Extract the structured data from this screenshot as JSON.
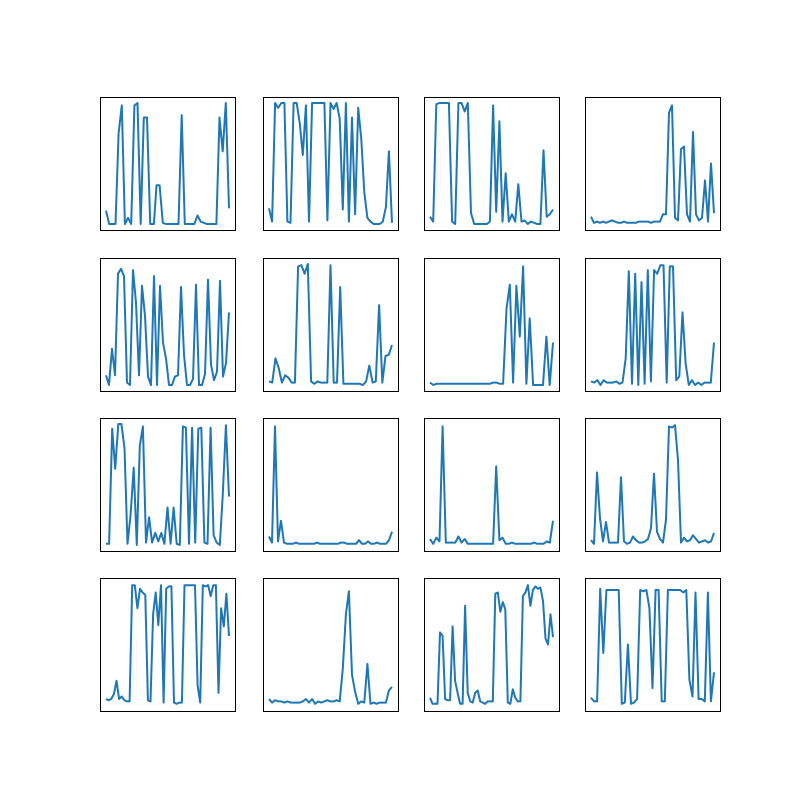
{
  "figure": {
    "background": "#ffffff",
    "line_color": "#1f77b4",
    "frame_color": "#000000"
  },
  "chart_data": [
    {
      "type": "line",
      "title": "",
      "xlabel": "",
      "ylabel": "",
      "axis_ticks": false,
      "grid": false,
      "xlim": [
        0,
        39
      ],
      "ylim": [
        0,
        1
      ],
      "x": [
        0,
        1,
        2,
        3,
        4,
        5,
        6,
        7,
        8,
        9,
        10,
        11,
        12,
        13,
        14,
        15,
        15.2,
        16,
        17,
        18,
        19,
        20,
        21,
        22,
        23,
        24,
        25,
        26,
        27,
        28,
        29,
        30,
        31,
        32,
        33,
        34,
        35,
        36,
        37,
        38,
        39
      ],
      "y": [
        0.11,
        0,
        0,
        0,
        0.75,
        0.98,
        0,
        0.05,
        0,
        0.98,
        1,
        0,
        0.88,
        0.88,
        0,
        0,
        0,
        0.32,
        0.32,
        0.01,
        0,
        0,
        0,
        0,
        0,
        0.9,
        0,
        0,
        0,
        0,
        0.07,
        0.02,
        0.01,
        0,
        0,
        0,
        0,
        0.88,
        0.6,
        1,
        0.13
      ]
    },
    {
      "type": "line",
      "title": "",
      "xlabel": "",
      "ylabel": "",
      "axis_ticks": false,
      "grid": false,
      "xlim": [
        0,
        39
      ],
      "ylim": [
        0,
        1
      ],
      "y": [
        0.13,
        0.02,
        1,
        0.96,
        1,
        1,
        0.02,
        0.01,
        1,
        1,
        0.83,
        0.57,
        0.98,
        0.02,
        1,
        1,
        1,
        1,
        1,
        0.03,
        1,
        0.95,
        1,
        0.87,
        0.12,
        1,
        0.02,
        0.88,
        0.08,
        0.96,
        0.7,
        0.26,
        0.05,
        0.02,
        0,
        0,
        0,
        0.02,
        0.14,
        0.6,
        0.01
      ]
    },
    {
      "type": "line",
      "title": "",
      "xlabel": "",
      "ylabel": "",
      "axis_ticks": false,
      "grid": false,
      "xlim": [
        0,
        39
      ],
      "ylim": [
        0,
        1
      ],
      "y": [
        0.06,
        0.02,
        0.99,
        1,
        1,
        1,
        1,
        0.02,
        0,
        1,
        1,
        0.93,
        1,
        0.09,
        0,
        0,
        0,
        0,
        0,
        0.02,
        0.98,
        0.1,
        0.85,
        0.02,
        0.42,
        0.02,
        0.08,
        0.02,
        0.33,
        0.02,
        0.03,
        0,
        0.02,
        0.01,
        0,
        0,
        0.61,
        0.06,
        0.08,
        0.12
      ]
    },
    {
      "type": "line",
      "title": "",
      "xlabel": "",
      "ylabel": "",
      "axis_ticks": false,
      "grid": false,
      "xlim": [
        0,
        39
      ],
      "ylim": [
        0,
        1
      ],
      "y": [
        0.06,
        0.01,
        0.02,
        0.01,
        0.02,
        0.01,
        0.02,
        0.03,
        0.02,
        0.01,
        0.01,
        0.02,
        0.01,
        0.01,
        0.01,
        0.01,
        0.02,
        0.02,
        0.02,
        0.02,
        0.01,
        0.02,
        0.02,
        0.02,
        0.08,
        0.08,
        0.92,
        0.98,
        0.05,
        0.03,
        0.62,
        0.64,
        0.08,
        0.02,
        0.76,
        0.08,
        0.03,
        0.05,
        0.36,
        0.02,
        0.5,
        0.09
      ]
    },
    {
      "type": "line",
      "title": "",
      "xlabel": "",
      "ylabel": "",
      "axis_ticks": false,
      "grid": false,
      "xlim": [
        0,
        39
      ],
      "ylim": [
        0,
        1
      ],
      "y": [
        0.08,
        0,
        0.3,
        0.08,
        0.92,
        0.96,
        0.9,
        0.02,
        0,
        0.95,
        0.68,
        0.08,
        0.82,
        0.57,
        0.07,
        0,
        0.9,
        0,
        0.82,
        0.35,
        0.22,
        0,
        0,
        0.07,
        0.08,
        0.81,
        0.25,
        0,
        0,
        0.05,
        0.83,
        0,
        0,
        0.09,
        0.87,
        0.17,
        0.04,
        0.11,
        0.86,
        0.07,
        0.18,
        0.6
      ]
    },
    {
      "type": "line",
      "title": "",
      "xlabel": "",
      "ylabel": "",
      "axis_ticks": false,
      "grid": false,
      "xlim": [
        0,
        39
      ],
      "ylim": [
        0,
        1
      ],
      "y": [
        0.03,
        0.02,
        0.22,
        0.14,
        0.02,
        0.08,
        0.06,
        0.02,
        0.02,
        0.98,
        0.99,
        0.92,
        1,
        0.03,
        0.01,
        0.03,
        0.02,
        0.02,
        0.02,
        0.99,
        0.02,
        0.02,
        0.81,
        0.01,
        0.01,
        0.01,
        0.01,
        0.01,
        0.01,
        0,
        0.03,
        0.16,
        0.02,
        0.03,
        0.66,
        0.02,
        0.24,
        0.25,
        0.33
      ]
    },
    {
      "type": "line",
      "title": "",
      "xlabel": "",
      "ylabel": "",
      "axis_ticks": false,
      "grid": false,
      "xlim": [
        0,
        39
      ],
      "ylim": [
        0,
        1
      ],
      "y": [
        0.02,
        0,
        0.01,
        0.01,
        0.01,
        0.01,
        0.01,
        0.01,
        0.01,
        0.01,
        0.01,
        0.01,
        0.01,
        0.01,
        0.01,
        0.01,
        0.01,
        0.01,
        0.01,
        0.02,
        0.02,
        0.01,
        0.01,
        0.63,
        0.83,
        0.02,
        0.82,
        0.4,
        0.98,
        0.01,
        0.55,
        0,
        0,
        0,
        0,
        0.4,
        0,
        0.35
      ]
    },
    {
      "type": "line",
      "title": "",
      "xlabel": "",
      "ylabel": "",
      "axis_ticks": false,
      "grid": false,
      "xlim": [
        0,
        39
      ],
      "ylim": [
        0,
        1
      ],
      "y": [
        0.03,
        0.02,
        0.04,
        0,
        0.04,
        0.02,
        0.02,
        0.02,
        0.03,
        0.01,
        0.02,
        0.22,
        0.94,
        0.01,
        0.92,
        0,
        0.85,
        0.01,
        0.95,
        0.03,
        0.95,
        0.92,
        0.99,
        0.99,
        0.02,
        0.98,
        0.98,
        0.04,
        0.07,
        0.6,
        0.18,
        0,
        0.04,
        0,
        0.02,
        0,
        0.02,
        0.02,
        0.02,
        0.35
      ]
    },
    {
      "type": "line",
      "title": "",
      "xlabel": "",
      "ylabel": "",
      "axis_ticks": false,
      "grid": false,
      "xlim": [
        0,
        39
      ],
      "ylim": [
        0,
        1
      ],
      "y": [
        0.01,
        0.01,
        0.96,
        0.63,
        1,
        1,
        0.8,
        0.01,
        0.25,
        0.64,
        0,
        0.82,
        0.98,
        0.02,
        0.23,
        0.02,
        0.1,
        0.03,
        0.1,
        0.01,
        0.31,
        0.01,
        0.31,
        0.01,
        0,
        0.98,
        0.97,
        0.01,
        0.97,
        0.02,
        0.96,
        0.97,
        0.02,
        0.01,
        0.97,
        0.08,
        0.02,
        0,
        0.42,
        0.99,
        0.4
      ]
    },
    {
      "type": "line",
      "title": "",
      "xlabel": "",
      "ylabel": "",
      "axis_ticks": false,
      "grid": false,
      "xlim": [
        0,
        39
      ],
      "ylim": [
        0,
        1
      ],
      "y": [
        0.07,
        0.02,
        0.98,
        0.03,
        0.2,
        0.02,
        0.01,
        0.01,
        0.01,
        0.02,
        0.01,
        0.01,
        0.01,
        0.01,
        0.01,
        0.01,
        0.02,
        0.01,
        0.01,
        0.01,
        0.01,
        0.01,
        0.01,
        0.01,
        0.02,
        0.02,
        0.01,
        0.01,
        0.01,
        0.01,
        0.04,
        0.01,
        0.01,
        0.03,
        0.01,
        0.01,
        0.02,
        0.01,
        0.01,
        0.01,
        0.04,
        0.11
      ]
    },
    {
      "type": "line",
      "title": "",
      "xlabel": "",
      "ylabel": "",
      "axis_ticks": false,
      "grid": false,
      "xlim": [
        0,
        39
      ],
      "ylim": [
        0,
        1
      ],
      "y": [
        0.05,
        0.01,
        0.06,
        0.03,
        0.98,
        0.02,
        0.02,
        0.02,
        0.02,
        0.07,
        0.02,
        0.05,
        0.01,
        0.01,
        0.01,
        0.01,
        0.01,
        0.01,
        0.01,
        0.01,
        0.01,
        0.65,
        0.04,
        0.06,
        0.01,
        0.01,
        0.02,
        0.01,
        0.01,
        0.01,
        0.01,
        0.01,
        0.01,
        0.02,
        0.01,
        0.01,
        0.01,
        0.03,
        0.02,
        0.2
      ]
    },
    {
      "type": "line",
      "title": "",
      "xlabel": "",
      "ylabel": "",
      "axis_ticks": false,
      "grid": false,
      "xlim": [
        0,
        39
      ],
      "ylim": [
        0,
        1
      ],
      "y": [
        0.04,
        0.01,
        0.6,
        0.22,
        0.03,
        0.19,
        0.02,
        0.02,
        0.02,
        0.02,
        0.56,
        0.03,
        0.01,
        0.02,
        0.07,
        0.04,
        0.02,
        0.02,
        0.03,
        0.05,
        0.14,
        0.59,
        0.11,
        0.05,
        0.02,
        0.21,
        0.98,
        0.97,
        0.99,
        0.7,
        0.02,
        0.06,
        0.03,
        0.04,
        0.08,
        0.05,
        0.02,
        0.03,
        0.04,
        0.02,
        0.03,
        0.1
      ]
    },
    {
      "type": "line",
      "title": "",
      "xlabel": "",
      "ylabel": "",
      "axis_ticks": false,
      "grid": false,
      "xlim": [
        0,
        39
      ],
      "ylim": [
        0,
        1
      ],
      "y": [
        0.05,
        0.04,
        0.05,
        0.09,
        0.2,
        0.05,
        0.07,
        0.04,
        0.03,
        0.03,
        0.99,
        0.99,
        0.8,
        0.96,
        0.93,
        0.91,
        0.04,
        0.03,
        0.75,
        0.93,
        0.66,
        0.99,
        0.02,
        0.96,
        0.98,
        0.98,
        0.02,
        0.01,
        0.02,
        0.02,
        0.99,
        0.99,
        0.99,
        0.99,
        0.99,
        0.16,
        0.02,
        0.99,
        0.98,
        0.99,
        0.9,
        0.99,
        0.99,
        0.1,
        0.8,
        0.65,
        0.92,
        0.57
      ]
    },
    {
      "type": "line",
      "title": "",
      "xlabel": "",
      "ylabel": "",
      "axis_ticks": false,
      "grid": false,
      "xlim": [
        0,
        39
      ],
      "ylim": [
        0,
        1
      ],
      "y": [
        0.05,
        0.02,
        0.04,
        0.03,
        0.03,
        0.02,
        0.03,
        0.02,
        0.02,
        0.02,
        0.02,
        0.03,
        0.05,
        0.02,
        0.05,
        0.01,
        0.03,
        0.02,
        0.03,
        0.04,
        0.03,
        0.03,
        0.04,
        0.03,
        0.3,
        0.75,
        0.94,
        0.25,
        0.11,
        0.01,
        0.03,
        0.02,
        0.34,
        0.01,
        0.02,
        0.01,
        0.02,
        0.02,
        0.02,
        0.12,
        0.15
      ]
    },
    {
      "type": "line",
      "title": "",
      "xlabel": "",
      "ylabel": "",
      "axis_ticks": false,
      "grid": false,
      "xlim": [
        0,
        39
      ],
      "ylim": [
        0,
        1
      ],
      "y": [
        0.06,
        0.01,
        0.01,
        0.01,
        0.6,
        0.57,
        0.05,
        0.04,
        0.04,
        0.65,
        0.2,
        0.1,
        0.01,
        0.01,
        0.82,
        0.1,
        0.03,
        0.02,
        0.1,
        0.12,
        0.03,
        0.02,
        0.01,
        0.03,
        0.03,
        0.03,
        0.92,
        0.93,
        0.77,
        0.85,
        0.79,
        0.02,
        0.01,
        0.13,
        0.06,
        0.03,
        0.03,
        0.9,
        0.93,
        0.99,
        0.82,
        0.95,
        0.98,
        0.96,
        0.97,
        0.86,
        0.55,
        0.5,
        0.75,
        0.56
      ]
    },
    {
      "type": "line",
      "title": "",
      "xlabel": "",
      "ylabel": "",
      "axis_ticks": false,
      "grid": false,
      "xlim": [
        0,
        39
      ],
      "ylim": [
        0,
        1
      ],
      "y": [
        0.06,
        0.03,
        0.03,
        0.96,
        0.43,
        0.95,
        0.95,
        0.95,
        0.95,
        0.95,
        0.01,
        0.02,
        0.5,
        0.01,
        0.02,
        0.05,
        0.95,
        0.94,
        0.95,
        0.8,
        0.14,
        0.95,
        0.95,
        0.03,
        0.03,
        0.95,
        0.95,
        0.95,
        0.95,
        0.95,
        0.93,
        0.95,
        0.21,
        0.07,
        0.93,
        0.05,
        0.05,
        0.03,
        0.93,
        0.03,
        0.27
      ]
    }
  ]
}
